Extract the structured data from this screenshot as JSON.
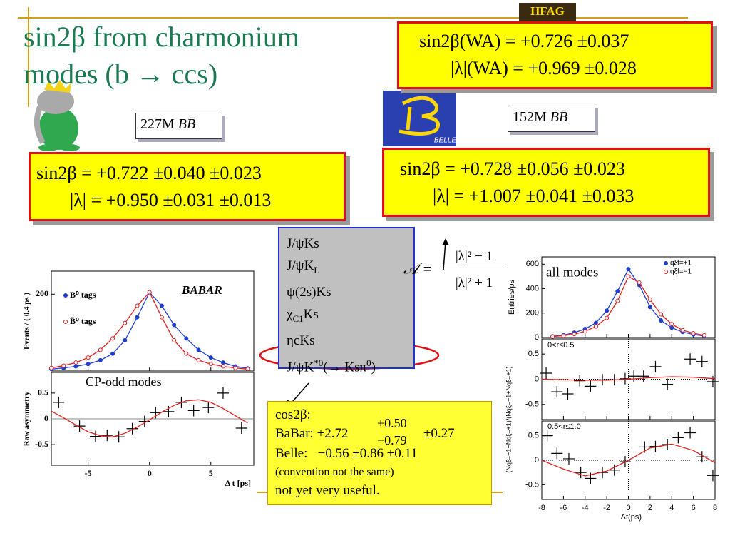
{
  "title": [
    "sin2β from charmonium",
    "modes (b → ccs)"
  ],
  "hfag": "HFAG",
  "world_average": [
    "sin2β(WA) = +0.726 ±0.037",
    "|λ|(WA) = +0.969 ±0.028"
  ],
  "babar": {
    "sample": {
      "count": "227M ",
      "mesons": "BB̄"
    },
    "results": [
      "sin2β = +0.722 ±0.040 ±0.023",
      "|λ| = +0.950 ±0.031 ±0.013"
    ],
    "plot": {
      "logo": "BABAR",
      "xlabel": "Δ t [ps]",
      "xlim": [
        -8,
        8.5
      ],
      "xticks": [
        -5,
        0,
        5
      ],
      "panels": [
        {
          "ylabel": "Events / ( 0.4 ps )",
          "ylim": [
            0,
            260
          ],
          "yticks": [
            200
          ],
          "series": [
            {
              "name": "B⁰ tags",
              "color": "#1f3fd0",
              "marker": "filled",
              "line": true,
              "x": [
                -8,
                -7,
                -6,
                -5,
                -4,
                -3,
                -2,
                -1,
                0,
                1,
                2,
                3,
                4,
                5,
                6,
                7,
                8
              ],
              "values": [
                5,
                8,
                12,
                18,
                28,
                45,
                80,
                140,
                205,
                170,
                120,
                85,
                55,
                35,
                22,
                12,
                7
              ]
            },
            {
              "name": "B̄⁰ tags",
              "color": "#e02020",
              "marker": "open",
              "line": true,
              "x": [
                -8,
                -7,
                -6,
                -5,
                -4,
                -3,
                -2,
                -1,
                0,
                1,
                2,
                3,
                4,
                5,
                6,
                7,
                8
              ],
              "values": [
                8,
                14,
                22,
                35,
                55,
                85,
                125,
                170,
                205,
                140,
                80,
                45,
                28,
                18,
                12,
                8,
                5
              ]
            }
          ]
        },
        {
          "ylabel": "Raw asymmetry",
          "annotation": "CP-odd modes",
          "ylim": [
            -0.9,
            0.9
          ],
          "yticks": [
            0.5,
            0,
            -0.5
          ],
          "zero_line": true,
          "series": [
            {
              "color": "#000000",
              "marker": "cross",
              "line": false,
              "x": [
                -7.4,
                -5.7,
                -4.4,
                -3.45,
                -2.5,
                -1.4,
                -0.4,
                0.5,
                1.55,
                2.6,
                3.6,
                4.8,
                6.0,
                7.5
              ],
              "values": [
                0.32,
                -0.14,
                -0.34,
                -0.32,
                -0.35,
                -0.19,
                -0.05,
                0.12,
                0.14,
                0.32,
                0.16,
                0.22,
                0.5,
                -0.18
              ]
            },
            {
              "color": "#e02020",
              "marker": "none",
              "line": true,
              "x": [
                -8,
                -7,
                -6,
                -5,
                -4,
                -3,
                -2,
                -1,
                0,
                1,
                2,
                3,
                4,
                5,
                6,
                7,
                8
              ],
              "values": [
                0.15,
                0.02,
                -0.12,
                -0.25,
                -0.33,
                -0.35,
                -0.28,
                -0.16,
                -0.02,
                0.13,
                0.26,
                0.35,
                0.37,
                0.32,
                0.2,
                0.06,
                -0.08
              ]
            }
          ]
        }
      ]
    }
  },
  "belle": {
    "logo": "BELLE",
    "sample": {
      "count": "152M ",
      "mesons": "BB̄"
    },
    "results": [
      "sin2β = +0.728 ±0.056 ±0.023",
      "|λ| = +1.007 ±0.041 ±0.033"
    ],
    "plot": {
      "xlabel": "Δt(ps)",
      "xlim": [
        -8,
        8
      ],
      "xticks": [
        -8,
        -6,
        -4,
        -2,
        0,
        2,
        4,
        6,
        8
      ],
      "asymmetry_ylabel": "(Nqξ=−1−Nqξ=+1)/(Nqξ=−1+Nqξ=+1)",
      "panels": [
        {
          "ylabel": "Entries/ps",
          "annotation": "all modes",
          "ylim": [
            0,
            660
          ],
          "yticks": [
            0,
            200,
            400,
            600
          ],
          "series": [
            {
              "name": "qξf=+1",
              "color": "#1f3fd0",
              "marker": "filled",
              "line": true,
              "x": [
                -7,
                -6,
                -5,
                -4,
                -3,
                -2,
                -1,
                0,
                1,
                2,
                3,
                4,
                5,
                6,
                7
              ],
              "values": [
                10,
                20,
                40,
                70,
                120,
                220,
                380,
                560,
                430,
                250,
                140,
                80,
                45,
                25,
                12
              ]
            },
            {
              "name": "qξf=−1",
              "color": "#e02020",
              "marker": "open",
              "line": true,
              "x": [
                -7,
                -6,
                -5,
                -4,
                -3,
                -2,
                -1,
                0,
                1,
                2,
                3,
                4,
                5,
                6,
                7
              ],
              "values": [
                8,
                15,
                28,
                50,
                90,
                160,
                300,
                500,
                450,
                310,
                190,
                110,
                60,
                35,
                18
              ]
            }
          ]
        },
        {
          "annotation": "0<r≤0.5",
          "ylim": [
            -0.8,
            0.8
          ],
          "yticks": [
            0.5,
            0,
            -0.5
          ],
          "zero_line": true,
          "series": [
            {
              "color": "#000000",
              "marker": "cross",
              "line": false,
              "x": [
                -7.6,
                -6.6,
                -5.6,
                -4.5,
                -3.5,
                -2.4,
                -1.3,
                -0.3,
                0.5,
                1.4,
                2.5,
                3.6,
                5.7,
                6.8,
                7.8
              ],
              "values": [
                0.12,
                -0.25,
                -0.29,
                -0.03,
                -0.14,
                -0.01,
                -0.01,
                0.01,
                0.06,
                0.06,
                0.25,
                -0.1,
                0.4,
                0.35,
                -0.05
              ]
            },
            {
              "color": "#e02020",
              "marker": "none",
              "line": true,
              "x": [
                -8,
                -6,
                -4,
                -2,
                0,
                2,
                4,
                6,
                8
              ],
              "values": [
                0.0,
                -0.01,
                -0.02,
                -0.02,
                0.0,
                0.03,
                0.05,
                0.04,
                0.01
              ]
            }
          ]
        },
        {
          "annotation": "0.5<r≤1.0",
          "ylim": [
            -0.8,
            0.8
          ],
          "yticks": [
            0.5,
            0,
            -0.5
          ],
          "zero_line": true,
          "series": [
            {
              "color": "#000000",
              "marker": "cross",
              "line": false,
              "x": [
                -7.5,
                -6.6,
                -5.5,
                -4.4,
                -3.5,
                -2.4,
                -1.3,
                -0.3,
                1.5,
                2.5,
                3.6,
                4.6,
                5.7,
                6.8,
                7.8
              ],
              "values": [
                0.5,
                0.14,
                0.03,
                -0.25,
                -0.37,
                -0.25,
                -0.2,
                -0.03,
                0.27,
                0.28,
                0.32,
                0.46,
                0.56,
                0.07,
                -0.31
              ]
            },
            {
              "color": "#e02020",
              "marker": "none",
              "line": true,
              "x": [
                -8,
                -6,
                -4,
                -2,
                0,
                2,
                4,
                6,
                8
              ],
              "values": [
                0.0,
                -0.18,
                -0.32,
                -0.22,
                0.0,
                0.25,
                0.33,
                0.2,
                -0.05
              ]
            }
          ]
        }
      ]
    }
  },
  "modes": [
    [
      {
        "text": "J/ψKs"
      }
    ],
    [
      {
        "text": "J/ψK"
      },
      {
        "sub": "L"
      }
    ],
    [
      {
        "text": "ψ(2s)Ks"
      }
    ],
    [
      {
        "text": "χ"
      },
      {
        "sub": "C1"
      },
      {
        "text": "Ks"
      }
    ],
    [
      {
        "text": "ηcKs"
      }
    ],
    [
      {
        "text": "J/ψK"
      },
      {
        "sup": "*0"
      },
      {
        "text": "(→ Ksπ"
      },
      {
        "sup": "0"
      },
      {
        "text": ")"
      }
    ]
  ],
  "asymmetry": {
    "lhs": "𝒜 =",
    "numerator": "|λ|² − 1",
    "denominator": "|λ|² + 1"
  },
  "cos2beta": {
    "heading": "cos2β:",
    "babar": {
      "label": "BaBar: +2.72",
      "upper": "+0.50",
      "lower": "−0.79",
      "syst": "±0.27"
    },
    "belle": "Belle:   −0.56 ±0.86 ±0.11",
    "note": "(convention not the same)",
    "verdict": "not yet very useful."
  }
}
